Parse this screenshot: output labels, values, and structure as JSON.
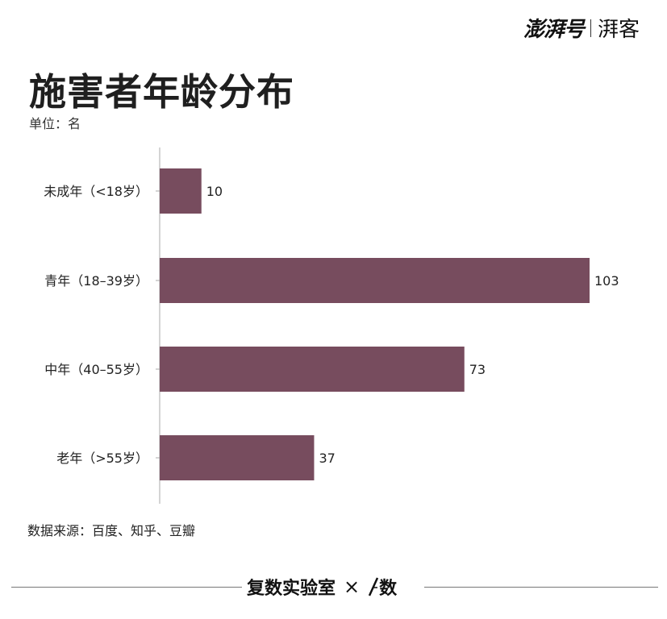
{
  "header": {
    "brand_main": "澎湃号",
    "brand_sub": "湃客"
  },
  "title": "施害者年龄分布",
  "subtitle": "单位：名",
  "chart_data": {
    "type": "bar",
    "orientation": "horizontal",
    "categories": [
      "未成年（<18岁）",
      "青年（18–39岁）",
      "中年（40–55岁）",
      "老年（>55岁）"
    ],
    "values": [
      10,
      103,
      73,
      37
    ],
    "value_labels": [
      "10",
      "103",
      "73",
      "37"
    ],
    "title": "施害者年龄分布",
    "subtitle": "单位：名",
    "xlim": [
      0,
      103
    ],
    "grid": false,
    "bar_color": "#774c5e"
  },
  "source": "数据来源：百度、知乎、豆瓣",
  "footer": {
    "left_brand": "复数实验室",
    "times": "×",
    "right_brand": "数"
  }
}
